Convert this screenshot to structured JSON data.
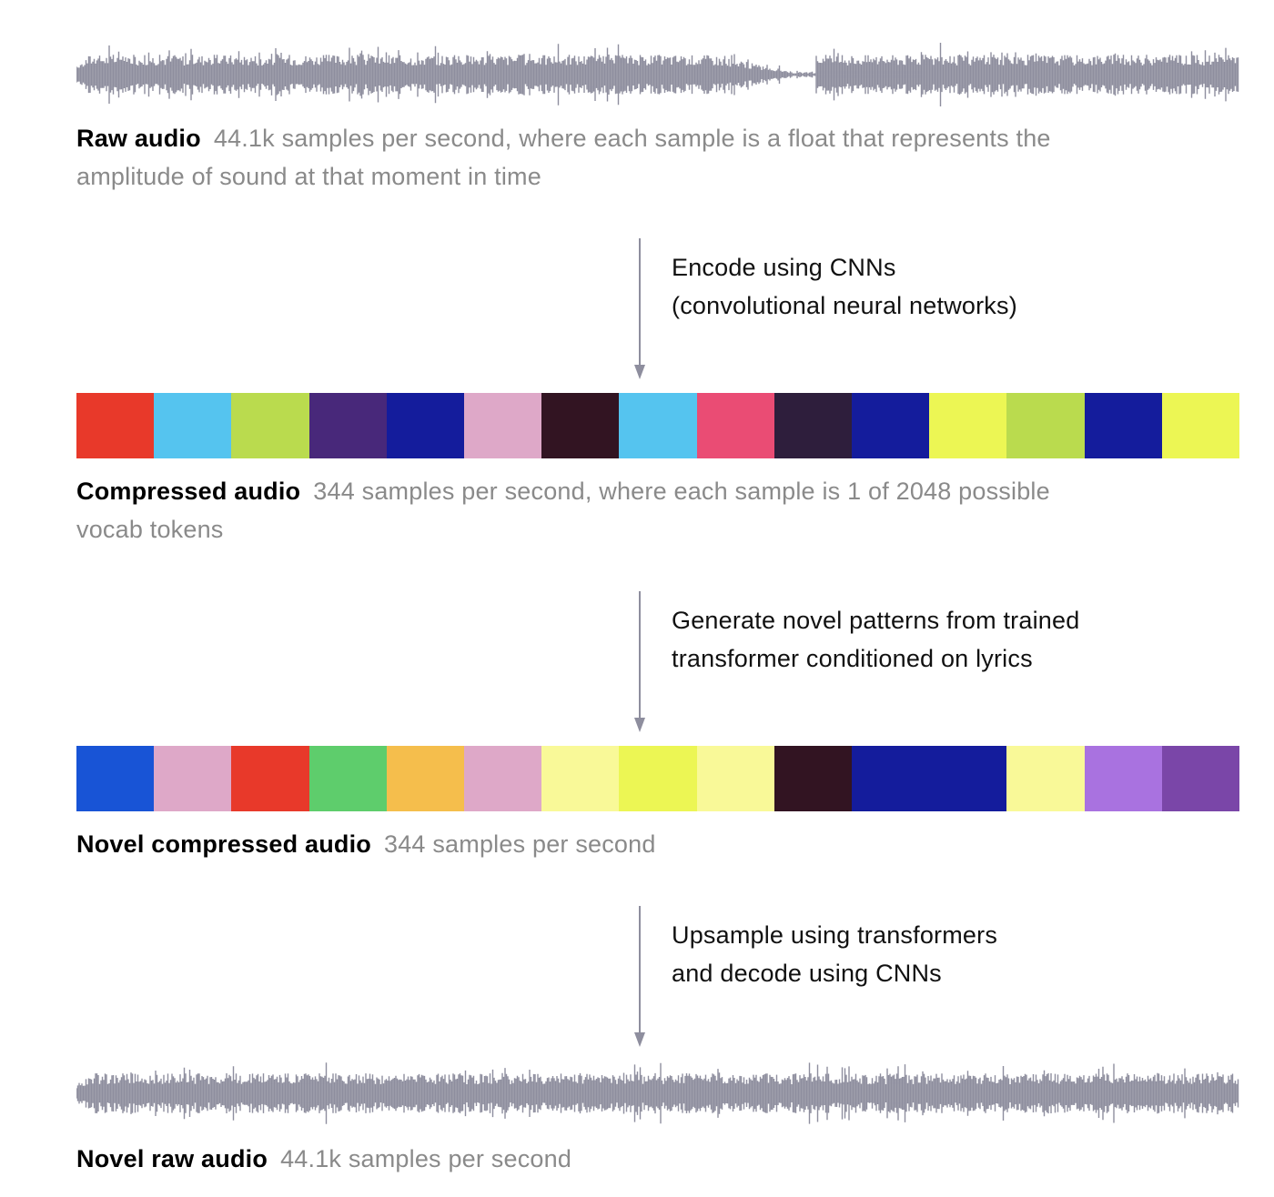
{
  "raw_audio": {
    "title": "Raw audio",
    "desc_line1": "44.1k samples per second, where each sample is a float that represents the",
    "desc_line2": "amplitude of sound at that moment in time"
  },
  "step_encode": {
    "line1": "Encode using CNNs",
    "line2": "(convolutional neural networks)"
  },
  "compressed_audio": {
    "title": "Compressed audio",
    "desc_line1": "344 samples per second, where each sample is 1 of 2048 possible",
    "desc_line2": "vocab tokens",
    "token_colors": [
      "#e8392a",
      "#55c4ef",
      "#badb4e",
      "#48287a",
      "#141c9c",
      "#dea8c8",
      "#321422",
      "#55c4ef",
      "#ea4c74",
      "#2e1e3c",
      "#141c9c",
      "#ecf654",
      "#badb4e",
      "#141c9c",
      "#ecf654"
    ]
  },
  "step_generate": {
    "line1": "Generate novel patterns from trained",
    "line2": "transformer conditioned on lyrics"
  },
  "novel_compressed_audio": {
    "title": "Novel compressed audio",
    "desc": "344 samples per second",
    "token_colors": [
      "#1854d6",
      "#dea8c8",
      "#e8392a",
      "#5ecd6c",
      "#f5be4c",
      "#dea8c8",
      "#f9f998",
      "#ecf654",
      "#f9f998",
      "#321422",
      "#141c9c",
      "#141c9c",
      "#f9f998",
      "#a972e0",
      "#7a46a8"
    ]
  },
  "step_upsample": {
    "line1": "Upsample using transformers",
    "line2": "and decode using CNNs"
  },
  "novel_raw_audio": {
    "title": "Novel raw audio",
    "desc": "44.1k samples per second"
  },
  "colors": {
    "waveform": "#8e8e9e",
    "arrow": "#8e8e9e"
  }
}
